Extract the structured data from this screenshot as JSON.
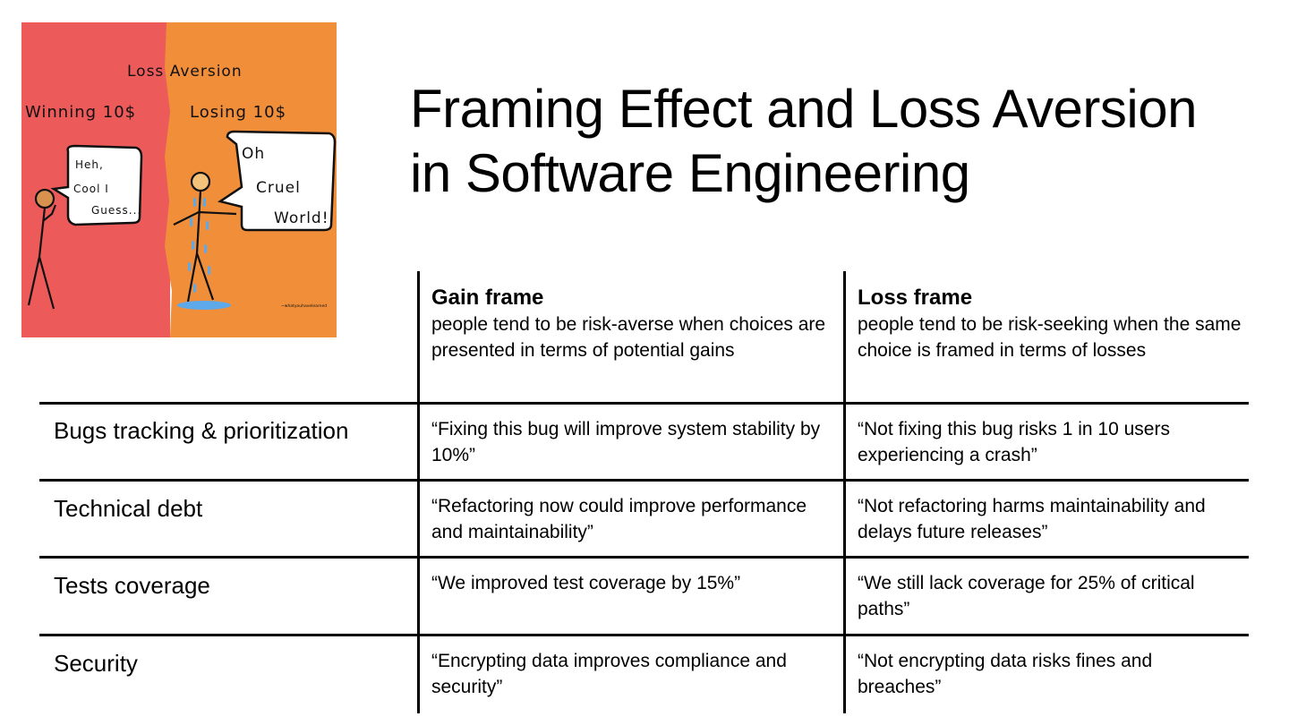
{
  "slide": {
    "title_line1": "Framing Effect and Loss Aversion",
    "title_line2": "in Software Engineering"
  },
  "cartoon": {
    "heading": "Loss Aversion",
    "left_label": "Winning 10$",
    "right_label": "Losing 10$",
    "left_bubble": [
      "Heh,",
      "Cool I",
      "Guess..."
    ],
    "right_bubble": [
      "Oh",
      "Cruel",
      "World!"
    ],
    "signature": "~whatyouhavelearned",
    "colors": {
      "left_bg": "#EC5A5A",
      "right_bg": "#F08E3A",
      "tear": "#5DA9E9"
    }
  },
  "table": {
    "columns": [
      {
        "title": "Gain frame",
        "desc": "people tend to be risk-averse when choices are presented in terms of potential gains"
      },
      {
        "title": "Loss frame",
        "desc": "people tend to be risk-seeking when the same choice is framed in terms of losses"
      }
    ],
    "rows": [
      {
        "label": "Bugs tracking & prioritization",
        "gain": "“Fixing this bug will improve system stability by 10%”",
        "loss": "“Not fixing this bug risks 1 in 10 users experiencing a crash”"
      },
      {
        "label": "Technical debt",
        "gain": "“Refactoring now could improve performance and maintainability”",
        "loss": "“Not refactoring harms maintainability and delays future releases”"
      },
      {
        "label": "Tests coverage",
        "gain": "“We improved test coverage by 15%”",
        "loss": "“We still lack coverage for 25% of critical paths”"
      },
      {
        "label": "Security",
        "gain": "“Encrypting data improves compliance and security”",
        "loss": "“Not encrypting data risks fines and breaches”"
      }
    ]
  }
}
